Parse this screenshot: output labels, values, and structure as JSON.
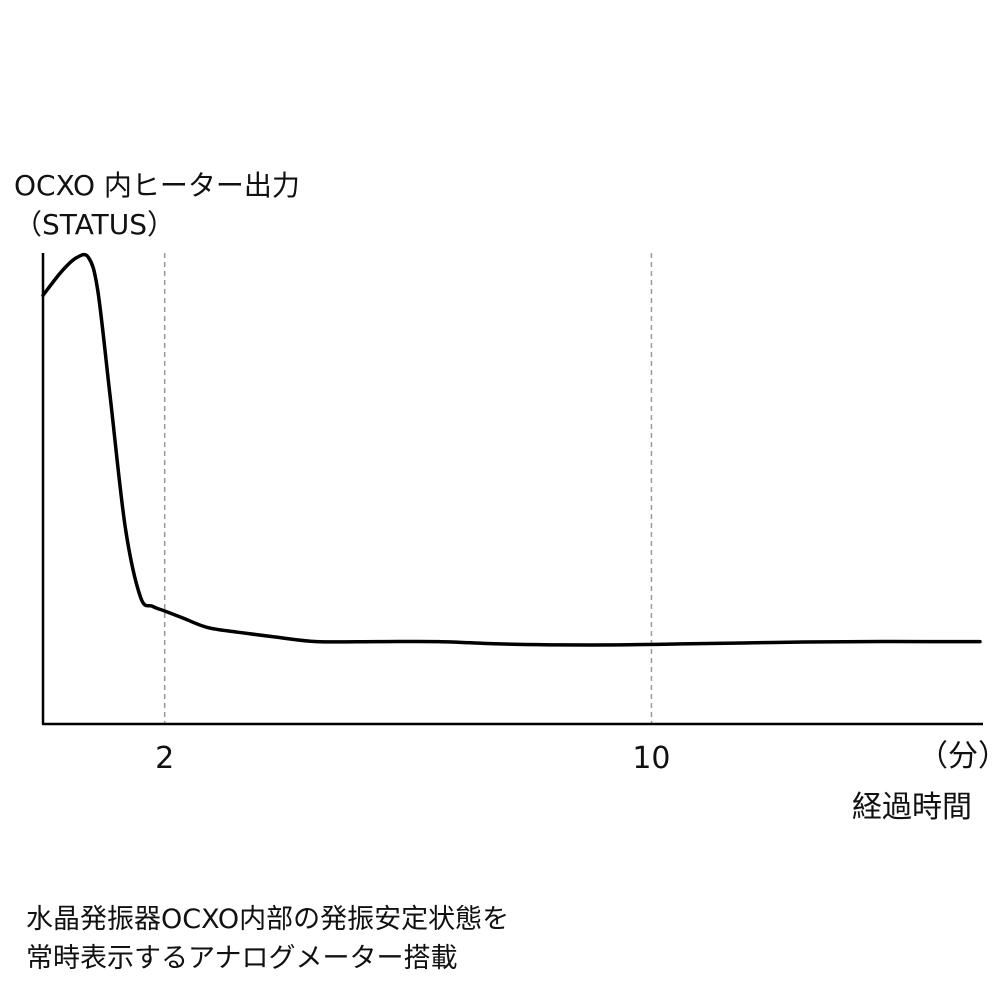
{
  "chart_data": {
    "type": "line",
    "ylabel_lines": [
      "OCXO 内ヒーター出力",
      "（STATUS）"
    ],
    "xlabel": "経過時間",
    "x_unit": "（分）",
    "x_ticks": [
      {
        "value": 2,
        "label": "2"
      },
      {
        "value": 10,
        "label": "10"
      }
    ],
    "xlim": [
      0,
      15.4
    ],
    "ylim": [
      0,
      100
    ],
    "grid": "dashed vertical lines at x ticks",
    "series": [
      {
        "x": [
          0,
          0.3,
          0.55,
          0.75,
          0.9,
          1.1,
          1.35,
          1.6,
          1.8,
          2.0,
          2.3,
          2.7,
          3.2,
          3.8,
          4.5,
          5.5,
          6.5,
          7.5,
          8.5,
          9.5,
          10.5,
          11.5,
          12.5,
          13.5,
          14.5,
          15.4
        ],
        "y": [
          91,
          96,
          99,
          99,
          92,
          70,
          42,
          27,
          25,
          24,
          22.5,
          20.5,
          19.5,
          18.5,
          17.5,
          17.5,
          17.5,
          17,
          16.8,
          16.8,
          17,
          17.2,
          17.4,
          17.5,
          17.5,
          17.5
        ]
      }
    ],
    "colors": {
      "line": "#000000",
      "grid": "#9a9a9a",
      "axis": "#000000"
    }
  },
  "caption": {
    "line1": "水晶発振器OCXO内部の発振安定状態を",
    "line2": "常時表示するアナログメーター搭載"
  }
}
